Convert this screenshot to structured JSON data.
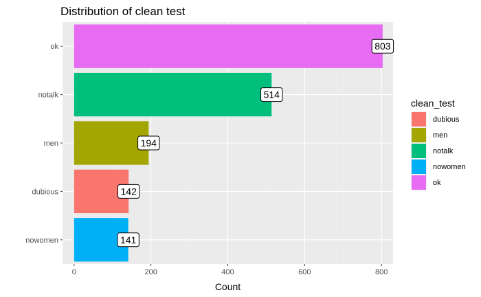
{
  "chart_data": {
    "type": "bar",
    "orientation": "horizontal",
    "title": "Distribution of clean test",
    "xlabel": "Count",
    "ylabel": "",
    "xlim": [
      0,
      830
    ],
    "xticks": [
      0,
      200,
      400,
      600,
      800
    ],
    "grid": true,
    "categories": [
      "ok",
      "notalk",
      "men",
      "dubious",
      "nowomen"
    ],
    "values": [
      803,
      514,
      194,
      142,
      141
    ],
    "colors": {
      "dubious": "#F8766D",
      "men": "#A3A500",
      "notalk": "#00BF7D",
      "nowomen": "#00B0F6",
      "ok": "#E76BF3"
    },
    "legend": {
      "title": "clean_test",
      "placement": "right",
      "items": [
        "dubious",
        "men",
        "notalk",
        "nowomen",
        "ok"
      ]
    }
  }
}
